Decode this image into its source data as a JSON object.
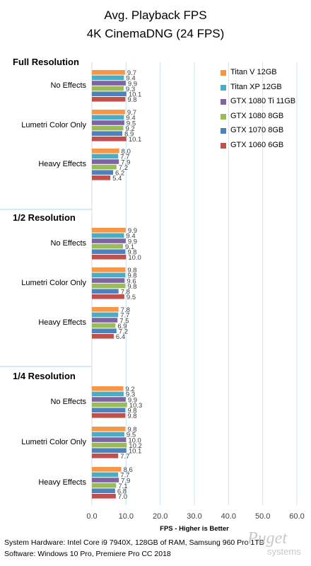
{
  "chart_data": {
    "type": "bar",
    "orientation": "horizontal",
    "title": "Avg. Playback FPS",
    "subtitle": "4K CinemaDNG (24 FPS)",
    "xlabel": "FPS - Higher is Better",
    "xlim": [
      0,
      60
    ],
    "xticks": [
      "0.0",
      "10.0",
      "20.0",
      "30.0",
      "40.0",
      "50.0",
      "60.0"
    ],
    "grid": true,
    "legend_position": "top-right",
    "series": [
      {
        "name": "Titan V 12GB",
        "color": "#f79646"
      },
      {
        "name": "Titan XP 12GB",
        "color": "#4bacc6"
      },
      {
        "name": "GTX 1080 Ti 11GB",
        "color": "#8064a2"
      },
      {
        "name": "GTX 1080 8GB",
        "color": "#9bbb59"
      },
      {
        "name": "GTX 1070 8GB",
        "color": "#4f81bd"
      },
      {
        "name": "GTX 1060 6GB",
        "color": "#c0504d"
      }
    ],
    "sections": [
      {
        "label": "Full Resolution",
        "categories": [
          {
            "label": "No Effects",
            "values": [
              "9.7",
              "9.4",
              "9.9",
              "9.3",
              "10.1",
              "9.8"
            ]
          },
          {
            "label": "Lumetri Color Only",
            "values": [
              "9.7",
              "9.4",
              "9.5",
              "9.2",
              "8.9",
              "10.1"
            ]
          },
          {
            "label": "Heavy Effects",
            "values": [
              "8.0",
              "7.7",
              "7.9",
              "7.2",
              "6.2",
              "5.4"
            ]
          }
        ]
      },
      {
        "label": "1/2 Resolution",
        "categories": [
          {
            "label": "No Effects",
            "values": [
              "9.9",
              "9.4",
              "9.9",
              "9.1",
              "9.8",
              "10.0"
            ]
          },
          {
            "label": "Lumetri Color Only",
            "values": [
              "9.8",
              "9.8",
              "9.6",
              "9.8",
              "7.8",
              "9.5"
            ]
          },
          {
            "label": "Heavy Effects",
            "values": [
              "7.8",
              "7.7",
              "7.5",
              "6.9",
              "7.2",
              "6.4"
            ]
          }
        ]
      },
      {
        "label": "1/4 Resolution",
        "categories": [
          {
            "label": "No Effects",
            "values": [
              "9.2",
              "9.3",
              "9.9",
              "10.3",
              "9.8",
              "9.8"
            ]
          },
          {
            "label": "Lumetri Color Only",
            "values": [
              "9.8",
              "9.5",
              "10.0",
              "10.2",
              "10.1",
              "7.7"
            ]
          },
          {
            "label": "Heavy Effects",
            "values": [
              "8.6",
              "7.7",
              "7.9",
              "7.1",
              "6.8",
              "7.0"
            ]
          }
        ]
      }
    ]
  },
  "footer": {
    "hardware": "System Hardware: Intel Core i9 7940X, 128GB of RAM, Samsung 960 Pro 1TB",
    "software": "Software: Windows 10 Pro, Premiere Pro CC 2018"
  },
  "logo": {
    "word1": "Puget",
    "word2": "systems"
  }
}
